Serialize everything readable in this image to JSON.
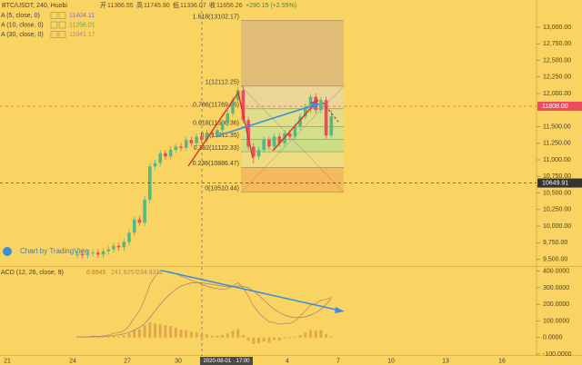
{
  "chart_data": [
    {
      "type": "candlestick",
      "title": "BTC/USDT, 240, Huobi",
      "ohlc_legend": [
        {
          "label": "开",
          "value": "11366.55"
        },
        {
          "label": "高",
          "value": "11745.90"
        },
        {
          "label": "低",
          "value": "11336.07"
        },
        {
          "label": "收",
          "value": "11656.26"
        },
        {
          "label": "",
          "value": "+290.15 (+2.55%)"
        }
      ],
      "ma_legend": [
        {
          "name": "A (5, close, 0)",
          "value": "11404.11",
          "color": "#8a6bd1"
        },
        {
          "name": "A (10, close, 0)",
          "value": "11256.01",
          "color": "#6aa84f"
        },
        {
          "name": "A (30, close, 0)",
          "value": "11041.17",
          "color": "#c27ba0"
        }
      ],
      "up_color": "#53b987",
      "down_color": "#eb4d5c",
      "open": [
        9560,
        9580,
        9560,
        9590,
        9600,
        9570,
        9620,
        9650,
        9700,
        9680,
        9760,
        9900,
        10100,
        10050,
        10400,
        10900,
        10950,
        11100,
        11050,
        11150,
        11200,
        11180,
        11300,
        11250,
        11350,
        11300,
        11400,
        11380,
        11450,
        11550,
        11700,
        11900,
        12050,
        11600,
        11200,
        11050,
        11150,
        11300,
        11200,
        11350,
        11250,
        11400,
        11350,
        11500,
        11650,
        11800,
        11950,
        11750,
        11900,
        11366.55
      ],
      "high": [
        9630,
        9630,
        9640,
        9650,
        9650,
        9670,
        9700,
        9750,
        9750,
        9810,
        9950,
        10150,
        10150,
        10450,
        10950,
        11000,
        11150,
        11150,
        11200,
        11250,
        11250,
        11350,
        11350,
        11400,
        11400,
        11450,
        11450,
        11500,
        11600,
        11750,
        11950,
        12100,
        12110,
        11650,
        11250,
        11200,
        11350,
        11350,
        11400,
        11400,
        11450,
        11450,
        11550,
        11700,
        11850,
        12000,
        12000,
        11950,
        11950,
        11745.9
      ],
      "low": [
        9510,
        9510,
        9510,
        9540,
        9520,
        9520,
        9570,
        9600,
        9630,
        9630,
        9710,
        9850,
        10000,
        10000,
        10350,
        10850,
        10900,
        11000,
        11000,
        11100,
        11130,
        11130,
        11200,
        11200,
        11250,
        11250,
        11330,
        11330,
        11400,
        11500,
        11650,
        11850,
        11550,
        11150,
        10950,
        11000,
        11100,
        11150,
        11150,
        11200,
        11200,
        11300,
        11300,
        11450,
        11600,
        11700,
        11700,
        11700,
        11316,
        11336.07
      ],
      "close": [
        9580,
        9560,
        9590,
        9600,
        9570,
        9620,
        9650,
        9700,
        9680,
        9760,
        9900,
        10100,
        10050,
        10400,
        10900,
        10950,
        11100,
        11050,
        11150,
        11200,
        11180,
        11300,
        11250,
        11350,
        11300,
        11400,
        11380,
        11450,
        11550,
        11700,
        11900,
        12050,
        11600,
        11200,
        11050,
        11150,
        11300,
        11200,
        11350,
        11250,
        11400,
        11350,
        11500,
        11650,
        11800,
        11950,
        11750,
        11900,
        11366.55,
        11656.26
      ],
      "ylim": [
        9411,
        13411
      ],
      "yticks": [
        {
          "value": 13000,
          "label": "13,000.00"
        },
        {
          "value": 12750,
          "label": "12,750.00"
        },
        {
          "value": 12500,
          "label": "12,500.00"
        },
        {
          "value": 12250,
          "label": "12,250.00"
        },
        {
          "value": 12000,
          "label": "12,000.00"
        },
        {
          "value": 11500,
          "label": "11,500.00"
        },
        {
          "value": 11250,
          "label": "11,250.00"
        },
        {
          "value": 11000,
          "label": "11,000.00"
        },
        {
          "value": 10750,
          "label": "10,750.00"
        },
        {
          "value": 10500,
          "label": "10,500.00"
        },
        {
          "value": 10250,
          "label": "10,250.00"
        },
        {
          "value": 10000,
          "label": "10,000.00"
        },
        {
          "value": 9750,
          "label": "9,750.00"
        },
        {
          "value": 9500,
          "label": "9,500.00"
        }
      ],
      "price_lines": [
        {
          "value": 11808,
          "label": "11808.00",
          "color": "#eb4d5c"
        },
        {
          "value": 10649.91,
          "label": "10649.91",
          "color": "#333333"
        }
      ],
      "fib": [
        {
          "value": 13102.17,
          "label": "1.618(13102.17)",
          "color": "#d8b47c"
        },
        {
          "value": 12112.25,
          "label": "1(12112.25)",
          "color": "#e6d6a8"
        },
        {
          "value": 11769.46,
          "label": "0.786(11769.46)",
          "color": "#d7e29a"
        },
        {
          "value": 11500.36,
          "label": "0.618(11500.36)",
          "color": "#c7e49a"
        },
        {
          "value": 11311.35,
          "label": "0.5(11311.35)",
          "color": "#b9e28f"
        },
        {
          "value": 11122.33,
          "label": "0.382(11122.33)",
          "color": "#e9df8c"
        },
        {
          "value": 10886.47,
          "label": "0.236(10886.47)",
          "color": "#f4b25c"
        },
        {
          "value": 10510.44,
          "label": "0(10510.44)",
          "color": "#f4b25c"
        }
      ],
      "watermark": "Chart by TradingView",
      "xticks": [
        "21",
        "24",
        "27",
        "30",
        "2020-08-01 · 17:00",
        "4",
        "7",
        "10",
        "13",
        "16"
      ]
    },
    {
      "type": "macd",
      "title": "ACD (12, 26, close, 9)",
      "histogram": {
        "color": "#e0a84a",
        "values": [
          0,
          -2,
          0,
          2,
          -3,
          2,
          5,
          8,
          6,
          12,
          25,
          45,
          50,
          75,
          90,
          85,
          80,
          75,
          70,
          60,
          48,
          45,
          35,
          30,
          20,
          18,
          10,
          12,
          15,
          25,
          40,
          50,
          15,
          -20,
          -40,
          -35,
          -25,
          -30,
          -15,
          -18,
          -5,
          -5,
          5,
          15,
          30,
          45,
          40,
          45,
          20,
          6.8945
        ]
      },
      "series": [
        {
          "name": "241.8257",
          "color": "#c0866a",
          "values": [
            5,
            3,
            5,
            8,
            6,
            10,
            15,
            25,
            30,
            40,
            70,
            120,
            160,
            230,
            320,
            370,
            400,
            400,
            395,
            385,
            370,
            360,
            345,
            335,
            320,
            310,
            300,
            295,
            290,
            295,
            310,
            330,
            300,
            250,
            190,
            150,
            120,
            95,
            90,
            80,
            85,
            85,
            100,
            130,
            160,
            195,
            205,
            225,
            230,
            241.8257
          ]
        },
        {
          "name": "234.9312",
          "color": "#a08a70",
          "values": [
            5,
            4,
            4,
            5,
            5,
            6,
            8,
            12,
            16,
            22,
            30,
            45,
            60,
            85,
            120,
            160,
            200,
            235,
            265,
            290,
            310,
            320,
            330,
            330,
            330,
            325,
            320,
            315,
            310,
            305,
            305,
            310,
            308,
            300,
            280,
            255,
            225,
            195,
            170,
            150,
            135,
            125,
            120,
            120,
            125,
            135,
            150,
            170,
            200,
            234.9312
          ]
        }
      ],
      "histogram_label": "6.8945",
      "ylim": [
        -100,
        420
      ],
      "yticks": [
        {
          "value": 400,
          "label": "400.0000"
        },
        {
          "value": 300,
          "label": "300.0000"
        },
        {
          "value": 200,
          "label": "200.0000"
        },
        {
          "value": 100,
          "label": "100.0000"
        },
        {
          "value": 0,
          "label": "0.0000"
        },
        {
          "value": -100,
          "label": "-100.0000"
        }
      ]
    }
  ]
}
